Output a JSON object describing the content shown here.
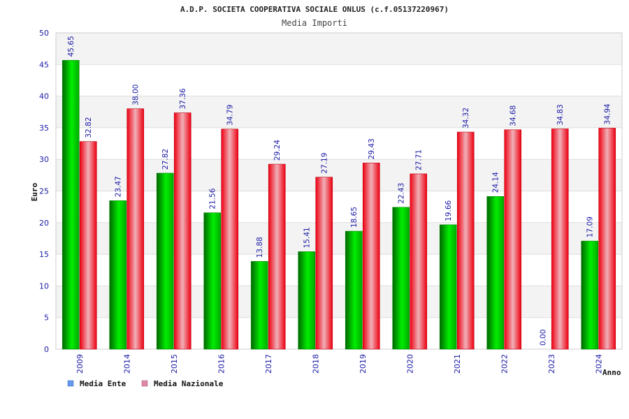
{
  "chart_data": {
    "type": "bar",
    "title": "A.D.P. SOCIETA COOPERATIVA SOCIALE ONLUS (c.f.05137220967)",
    "subtitle": "Media Importi",
    "xlabel": "Anno",
    "ylabel": "Euro",
    "ylim": [
      0,
      50
    ],
    "yticks": [
      0,
      5,
      10,
      15,
      20,
      25,
      30,
      35,
      40,
      45,
      50
    ],
    "grid": true,
    "legend_position": "bottom-left",
    "categories": [
      "2009",
      "2014",
      "2015",
      "2016",
      "2017",
      "2018",
      "2019",
      "2020",
      "2021",
      "2022",
      "2023",
      "2024"
    ],
    "series": [
      {
        "name": "Media Ente",
        "color": "#00cc00",
        "legend_color": "#6699ee",
        "values": [
          45.65,
          23.47,
          27.82,
          21.56,
          13.88,
          15.41,
          18.65,
          22.43,
          19.66,
          24.14,
          0.0,
          17.09
        ],
        "labels": [
          "45.65",
          "23.47",
          "27.82",
          "21.56",
          "13.88",
          "15.41",
          "18.65",
          "22.43",
          "19.66",
          "24.14",
          "0.00",
          "17.09"
        ]
      },
      {
        "name": "Media Nazionale",
        "color": "#ee1122",
        "legend_color": "#dd88aa",
        "values": [
          32.82,
          38.0,
          37.36,
          34.79,
          29.24,
          27.19,
          29.43,
          27.71,
          34.32,
          34.68,
          34.83,
          34.94
        ],
        "labels": [
          "32.82",
          "38.00",
          "37.36",
          "34.79",
          "29.24",
          "27.19",
          "29.43",
          "27.71",
          "34.32",
          "34.68",
          "34.83",
          "34.94"
        ]
      }
    ]
  },
  "colors": {
    "tick_label": "#1a1aa6",
    "value_label": "#1a1aa6",
    "band": "#f3f3f3",
    "grid": "#dddddd"
  }
}
